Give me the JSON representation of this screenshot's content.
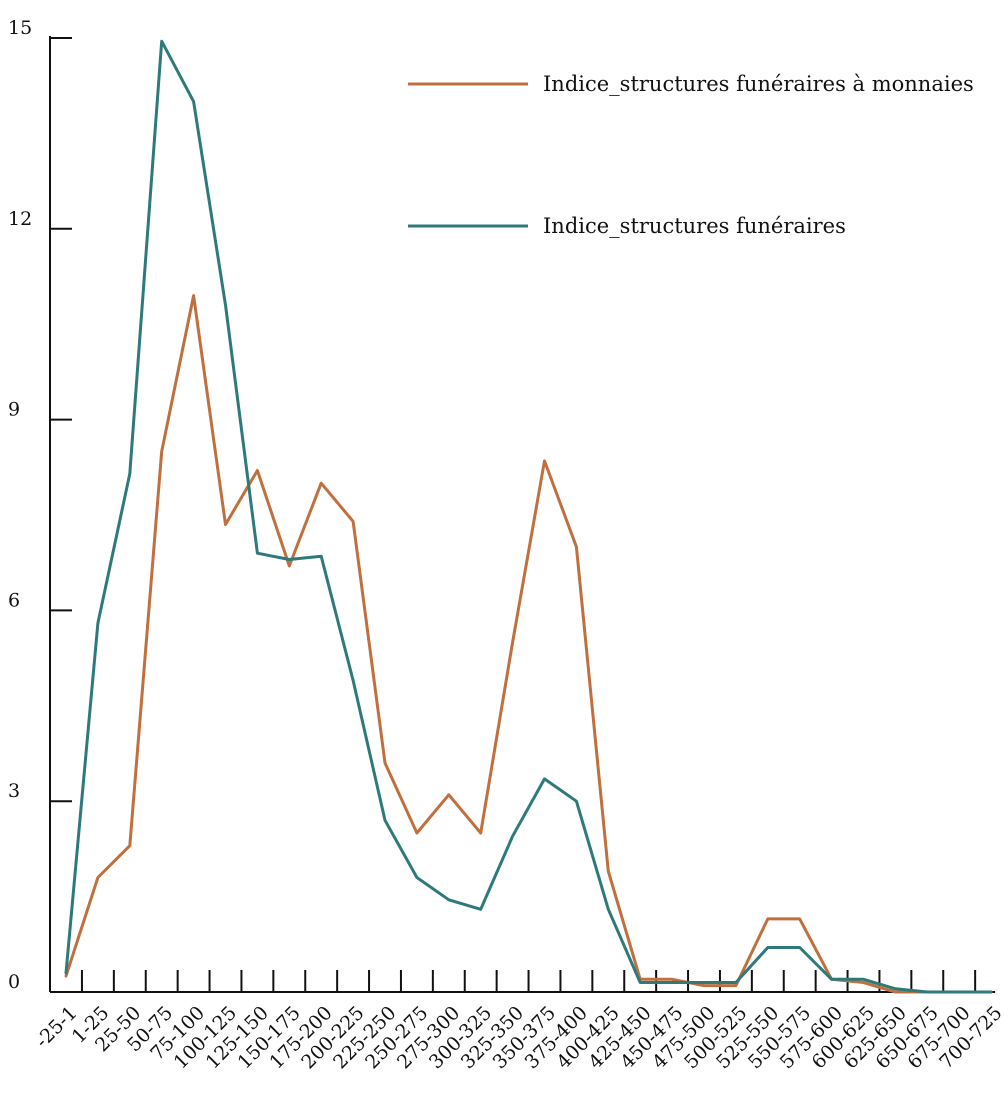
{
  "chart_data": {
    "type": "line",
    "categories": [
      "-25-1",
      "1-25",
      "25-50",
      "50-75",
      "75-100",
      "100-125",
      "125-150",
      "150-175",
      "175-200",
      "200-225",
      "225-250",
      "250-275",
      "275-300",
      "300-325",
      "325-350",
      "350-375",
      "375-400",
      "400-425",
      "425-450",
      "450-475",
      "475-500",
      "500-525",
      "525-550",
      "550-575",
      "575-600",
      "600-625",
      "625-650",
      "650-675",
      "675-700",
      "700-725"
    ],
    "series": [
      {
        "name": "Indice_structures funéraires à monnaies",
        "color": "#c0703e",
        "values": [
          0.25,
          1.8,
          2.3,
          8.5,
          10.95,
          7.35,
          8.2,
          6.7,
          8.0,
          7.4,
          3.6,
          2.5,
          3.1,
          2.5,
          5.5,
          8.35,
          7.0,
          1.9,
          0.2,
          0.2,
          0.1,
          0.1,
          1.15,
          1.15,
          0.2,
          0.15,
          0.0,
          0.0,
          0.0,
          0.0
        ]
      },
      {
        "name": "Indice_structures funéraires",
        "color": "#2e7a7a",
        "values": [
          0.3,
          5.8,
          8.15,
          14.95,
          14.0,
          10.8,
          6.9,
          6.8,
          6.85,
          4.9,
          2.7,
          1.8,
          1.45,
          1.3,
          2.45,
          3.35,
          3.0,
          1.3,
          0.15,
          0.15,
          0.15,
          0.15,
          0.7,
          0.7,
          0.2,
          0.2,
          0.05,
          0.0,
          0.0,
          0.0
        ]
      }
    ],
    "y_ticks": [
      0,
      3,
      6,
      9,
      12,
      15
    ],
    "ylim": [
      0,
      15
    ],
    "grid": false,
    "legend_position": "top-right",
    "title": "",
    "xlabel": "",
    "ylabel": ""
  }
}
